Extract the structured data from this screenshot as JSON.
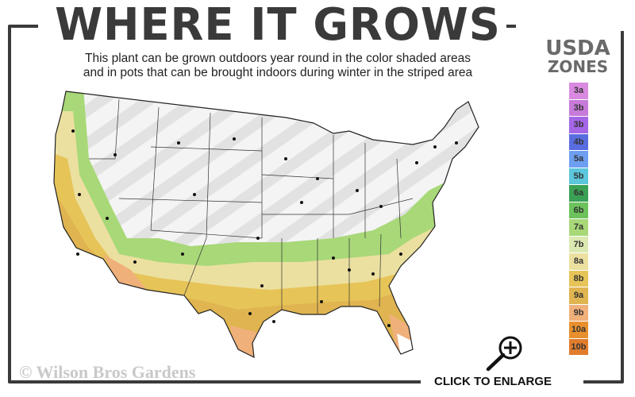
{
  "header": {
    "title": "WHERE IT GROWS",
    "subtitle_line1": "This plant can be grown outdoors year round in the color shaded areas",
    "subtitle_line2": "and in pots that can be brought indoors during winter in the striped area"
  },
  "legend": {
    "title_line1": "USDA",
    "title_line2": "ZONES",
    "zones": [
      {
        "label": "3a",
        "color": "#d98ae0"
      },
      {
        "label": "3b",
        "color": "#c77ad9"
      },
      {
        "label": "3b",
        "color": "#a466e6"
      },
      {
        "label": "4b",
        "color": "#5a6de0"
      },
      {
        "label": "5a",
        "color": "#6d9ef0"
      },
      {
        "label": "5b",
        "color": "#5cc6dc"
      },
      {
        "label": "6a",
        "color": "#3aa054"
      },
      {
        "label": "6b",
        "color": "#6cc25c"
      },
      {
        "label": "7a",
        "color": "#a8d878"
      },
      {
        "label": "7b",
        "color": "#dbe9b0"
      },
      {
        "label": "8a",
        "color": "#ece0a0"
      },
      {
        "label": "8b",
        "color": "#e6c458"
      },
      {
        "label": "9a",
        "color": "#e0b450"
      },
      {
        "label": "9b",
        "color": "#f0b07a"
      },
      {
        "label": "10a",
        "color": "#e8902e"
      },
      {
        "label": "10b",
        "color": "#e07c2c"
      }
    ]
  },
  "footer": {
    "copyright": "© Wilson Bros Gardens",
    "enlarge_label": "CLICK TO ENLARGE",
    "enlarge_icon": "zoom-in-magnifier-icon"
  }
}
